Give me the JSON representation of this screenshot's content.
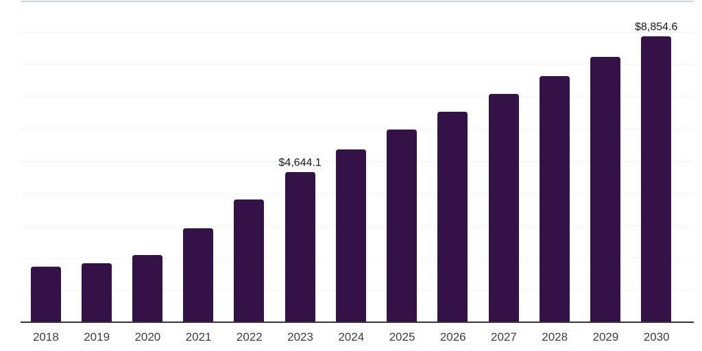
{
  "chart_data": {
    "type": "bar",
    "title": "",
    "xlabel": "",
    "ylabel": "",
    "categories": [
      "2018",
      "2019",
      "2020",
      "2021",
      "2022",
      "2023",
      "2024",
      "2025",
      "2026",
      "2027",
      "2028",
      "2029",
      "2030"
    ],
    "values": [
      1720,
      1830,
      2080,
      2910,
      3800,
      4644.1,
      5360,
      5970,
      6520,
      7080,
      7630,
      8220,
      8854.6
    ],
    "data_labels": {
      "2023": "$4,644.1",
      "2030": "$8,854.6"
    },
    "ylim": [
      0,
      10000
    ],
    "gridline_step": 1000,
    "grid": "horizontal",
    "legend": "none",
    "y_axis_tick_labels": "none"
  },
  "colors": {
    "background": "#ffffff",
    "bar": "#331347",
    "axis_line": "#333338",
    "top_border": "#cfd2d5",
    "gridline": "#f3f3f5",
    "x_label": "#3d3d3d",
    "value_label": "#17171c"
  }
}
